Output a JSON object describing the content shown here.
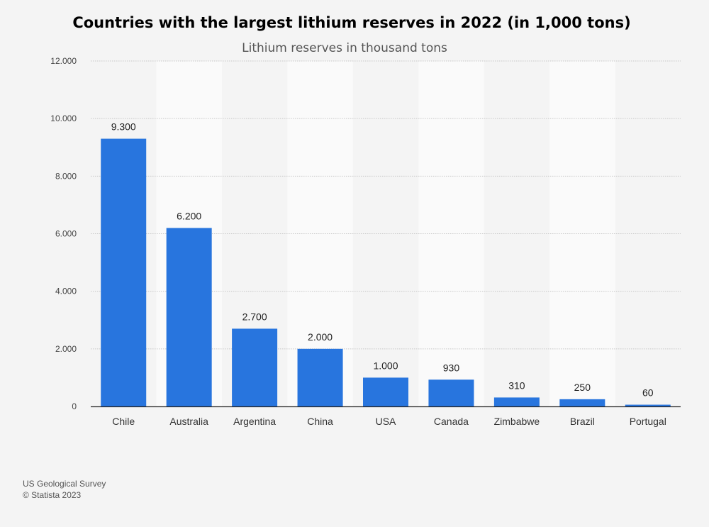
{
  "chart_data": {
    "type": "bar",
    "title": "Countries with the largest lithium reserves in 2022 (in 1,000 tons)",
    "subtitle": "Lithium reserves in thousand tons",
    "categories": [
      "Chile",
      "Australia",
      "Argentina",
      "China",
      "USA",
      "Canada",
      "Zimbabwe",
      "Brazil",
      "Portugal"
    ],
    "values": [
      9300,
      6200,
      2700,
      2000,
      1000,
      930,
      310,
      250,
      60
    ],
    "value_labels": [
      "9.300",
      "6.200",
      "2.700",
      "2.000",
      "1.000",
      "930",
      "310",
      "250",
      "60"
    ],
    "ylim": [
      0,
      12000
    ],
    "yticks": [
      0,
      2000,
      4000,
      6000,
      8000,
      10000,
      12000
    ],
    "ytick_labels": [
      "0",
      "2.000",
      "4.000",
      "6.000",
      "8.000",
      "10.000",
      "12.000"
    ],
    "xlabel": "",
    "ylabel": "",
    "grid": true,
    "bar_color": "#2875de"
  },
  "footer": {
    "source": "US Geological Survey",
    "copyright": "© Statista 2023"
  }
}
